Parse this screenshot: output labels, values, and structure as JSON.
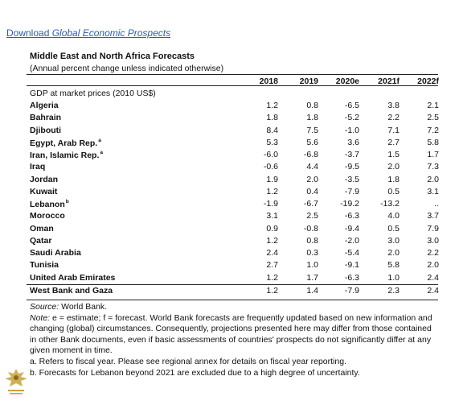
{
  "link": {
    "prefix": "Download ",
    "italic": "Global Economic Prospects"
  },
  "table": {
    "title": "Middle East and North Africa Forecasts",
    "subtitle": "(Annual percent change unless indicated otherwise)",
    "headers": [
      "2018",
      "2019",
      "2020e",
      "2021f",
      "2022f"
    ],
    "section_label": "GDP at market prices (2010 US$)",
    "rows": [
      {
        "country": "Algeria",
        "note": "",
        "values": [
          "1.2",
          "0.8",
          "-6.5",
          "3.8",
          "2.1"
        ]
      },
      {
        "country": "Bahrain",
        "note": "",
        "values": [
          "1.8",
          "1.8",
          "-5.2",
          "2.2",
          "2.5"
        ]
      },
      {
        "country": "Djibouti",
        "note": "",
        "values": [
          "8.4",
          "7.5",
          "-1.0",
          "7.1",
          "7.2"
        ]
      },
      {
        "country": "Egypt, Arab Rep.",
        "note": "a",
        "values": [
          "5.3",
          "5.6",
          "3.6",
          "2.7",
          "5.8"
        ]
      },
      {
        "country": "Iran, Islamic Rep.",
        "note": "a",
        "values": [
          "-6.0",
          "-6.8",
          "-3.7",
          "1.5",
          "1.7"
        ]
      },
      {
        "country": "Iraq",
        "note": "",
        "values": [
          "-0.6",
          "4.4",
          "-9.5",
          "2.0",
          "7.3"
        ]
      },
      {
        "country": "Jordan",
        "note": "",
        "values": [
          "1.9",
          "2.0",
          "-3.5",
          "1.8",
          "2.0"
        ]
      },
      {
        "country": "Kuwait",
        "note": "",
        "values": [
          "1.2",
          "0.4",
          "-7.9",
          "0.5",
          "3.1"
        ]
      },
      {
        "country": "Lebanon",
        "note": "b",
        "values": [
          "-1.9",
          "-6.7",
          "-19.2",
          "-13.2",
          ".."
        ]
      },
      {
        "country": "Morocco",
        "note": "",
        "values": [
          "3.1",
          "2.5",
          "-6.3",
          "4.0",
          "3.7"
        ]
      },
      {
        "country": "Oman",
        "note": "",
        "values": [
          "0.9",
          "-0.8",
          "-9.4",
          "0.5",
          "7.9"
        ]
      },
      {
        "country": "Qatar",
        "note": "",
        "values": [
          "1.2",
          "0.8",
          "-2.0",
          "3.0",
          "3.0"
        ]
      },
      {
        "country": "Saudi Arabia",
        "note": "",
        "values": [
          "2.4",
          "0.3",
          "-5.4",
          "2.0",
          "2.2"
        ]
      },
      {
        "country": "Tunisia",
        "note": "",
        "values": [
          "2.7",
          "1.0",
          "-9.1",
          "5.8",
          "2.0"
        ]
      },
      {
        "country": "United Arab Emirates",
        "note": "",
        "values": [
          "1.2",
          "1.7",
          "-6.3",
          "1.0",
          "2.4"
        ]
      },
      {
        "country": "West Bank and Gaza",
        "note": "",
        "values": [
          "1.2",
          "1.4",
          "-7.9",
          "2.3",
          "2.4"
        ]
      }
    ]
  },
  "notes": {
    "source_label": "Source:",
    "source_text": " World Bank.",
    "note_label": "Note:",
    "note_text": " e = estimate; f = forecast. World Bank forecasts are frequently updated based on new information and changing (global) circumstances. Consequently, projections presented here may differ from those contained in other Bank documents, even if basic assessments of countries' prospects do not significantly differ at any given moment in time.",
    "footnote_a": "a. Refers to fiscal year. Please see regional annex for details on fiscal year reporting.",
    "footnote_b": "b. Forecasts for Lebanon beyond 2021 are excluded due to a high degree of uncertainty."
  },
  "logo": {
    "icon": "eagle-emblem-icon",
    "color": "#c8a23a"
  }
}
